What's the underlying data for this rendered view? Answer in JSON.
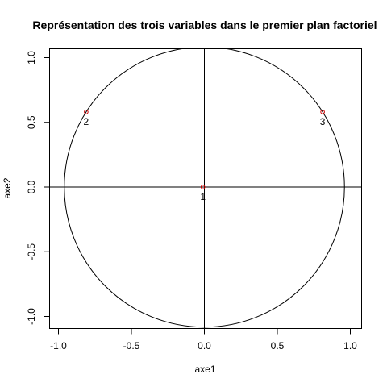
{
  "chart_data": {
    "type": "scatter",
    "title": "Représentation des trois variables dans le premier plan factoriel",
    "xlabel": "axe1",
    "ylabel": "axe2",
    "xlim": [
      -1.0,
      1.0
    ],
    "ylim": [
      -1.0,
      1.0
    ],
    "xticks": [
      -1.0,
      -0.5,
      0.0,
      0.5,
      1.0
    ],
    "xtick_labels": [
      "-1.0",
      "-0.5",
      "0.0",
      "0.5",
      "1.0"
    ],
    "yticks": [
      -1.0,
      -0.5,
      0.0,
      0.5,
      1.0
    ],
    "ytick_labels": [
      "-1.0",
      "-0.5",
      "0.0",
      "0.5",
      "1.0"
    ],
    "grid": false,
    "circle": {
      "center": [
        0,
        0
      ],
      "radius": 0.96
    },
    "reference_lines": {
      "horizontal": 0,
      "vertical": 0
    },
    "point_color": "#cc0000",
    "points": [
      {
        "label": "1",
        "x": -0.01,
        "y": 0.0
      },
      {
        "label": "2",
        "x": -0.81,
        "y": 0.58
      },
      {
        "label": "3",
        "x": 0.81,
        "y": 0.58
      }
    ]
  }
}
